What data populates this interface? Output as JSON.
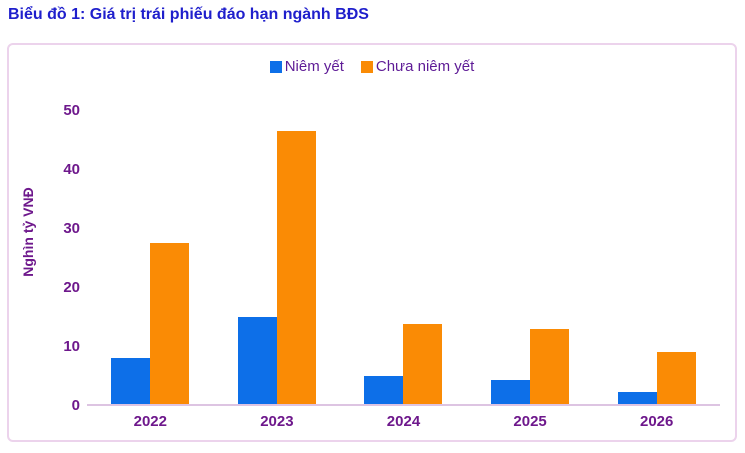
{
  "title": "Biểu đồ 1: Giá trị trái phiếu đáo hạn ngành BĐS",
  "colors": {
    "title_text": "#1f1fcc",
    "axis_text": "#6e188c",
    "legend_text": "#5e1b96",
    "listed_bar": "#0d6fe8",
    "unlisted_bar": "#fa8b05",
    "box_border": "#ecd3ec",
    "axis_line": "#ddc4e2"
  },
  "legend": {
    "items": [
      {
        "label": "Niêm yết",
        "color": "#0d6fe8"
      },
      {
        "label": "Chưa niêm yết",
        "color": "#fa8b05"
      }
    ]
  },
  "chart_data": {
    "type": "bar",
    "title": "Biểu đồ 1: Giá trị trái phiếu đáo hạn ngành BĐS",
    "categories": [
      "2022",
      "2023",
      "2024",
      "2025",
      "2026"
    ],
    "series": [
      {
        "name": "Niêm yết",
        "color": "#0d6fe8",
        "values": [
          8,
          15,
          5,
          4.2,
          2.2
        ]
      },
      {
        "name": "Chưa niêm yết",
        "color": "#fa8b05",
        "values": [
          27.5,
          46.5,
          13.7,
          12.8,
          9
        ]
      }
    ],
    "xlabel": "",
    "ylabel": "Nghìn tỷ VNĐ",
    "ylim": [
      0,
      50
    ],
    "yticks": [
      0,
      10,
      20,
      30,
      40,
      50
    ],
    "grid": false,
    "legend_position": "top-center"
  }
}
